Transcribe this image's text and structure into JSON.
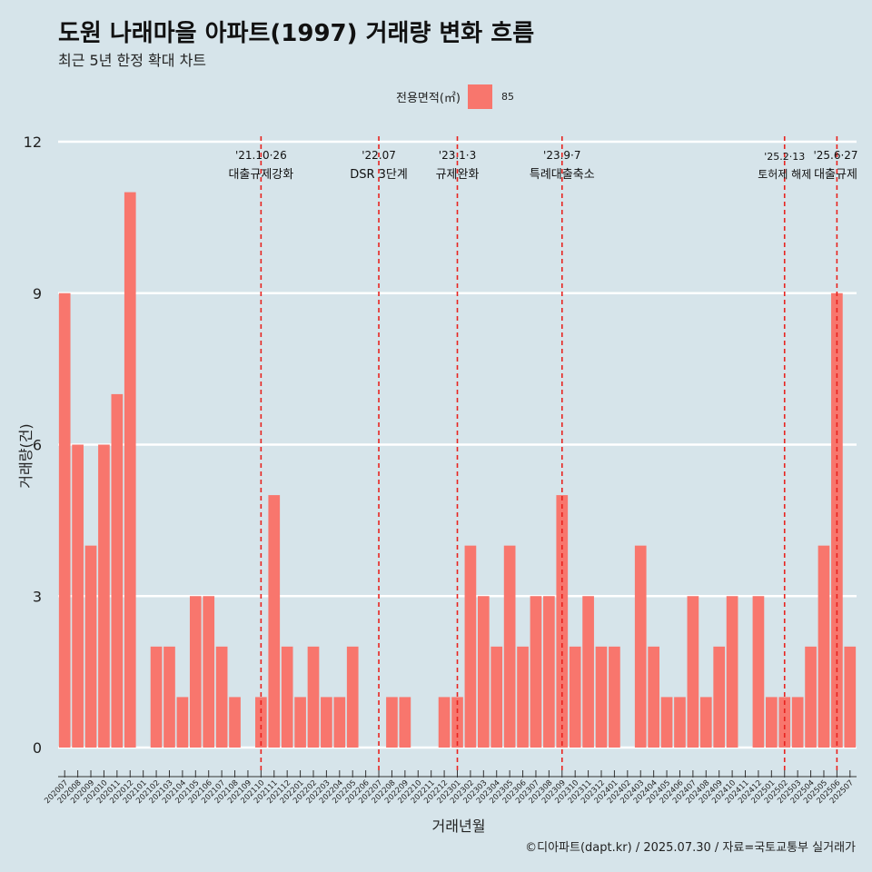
{
  "title": "도원 나래마을 아파트(1997) 거래량 변화 흐름",
  "subtitle": "최근 5년 한정 확대 차트",
  "caption": "©디아파트(dapt.kr) / 2025.07.30 / 자료=국토교통부 실거래가",
  "colors": {
    "bar": "#f8766d",
    "vline": "#e8231f",
    "background": "#d6e4ea",
    "grid": "#ffffff"
  },
  "chart_data": {
    "type": "bar",
    "xlabel": "거래년월",
    "ylabel": "거래량(건)",
    "ylim": [
      0,
      12
    ],
    "yticks": [
      0,
      3,
      6,
      9,
      12
    ],
    "grid": true,
    "legend": {
      "title": "전용면적(㎡)",
      "entries": [
        "85"
      ],
      "position": "top"
    },
    "categories": [
      "202007",
      "202008",
      "202009",
      "202010",
      "202011",
      "202012",
      "202101",
      "202102",
      "202103",
      "202104",
      "202105",
      "202106",
      "202107",
      "202108",
      "202109",
      "202110",
      "202111",
      "202112",
      "202201",
      "202202",
      "202203",
      "202204",
      "202205",
      "202206",
      "202207",
      "202208",
      "202209",
      "202210",
      "202211",
      "202212",
      "202301",
      "202302",
      "202303",
      "202304",
      "202305",
      "202306",
      "202307",
      "202308",
      "202309",
      "202310",
      "202311",
      "202312",
      "202401",
      "202402",
      "202403",
      "202404",
      "202405",
      "202406",
      "202407",
      "202408",
      "202409",
      "202410",
      "202411",
      "202412",
      "202501",
      "202502",
      "202503",
      "202504",
      "202505",
      "202506",
      "202507"
    ],
    "series": [
      {
        "name": "85",
        "values": [
          9,
          6,
          4,
          6,
          7,
          11,
          0,
          2,
          2,
          1,
          3,
          3,
          2,
          1,
          0,
          1,
          5,
          2,
          1,
          2,
          1,
          1,
          2,
          0,
          0,
          1,
          1,
          0,
          0,
          1,
          1,
          4,
          3,
          2,
          4,
          2,
          3,
          3,
          5,
          2,
          3,
          2,
          2,
          0,
          4,
          2,
          1,
          1,
          3,
          1,
          2,
          3,
          0,
          3,
          1,
          1,
          1,
          2,
          4,
          9,
          2
        ]
      }
    ],
    "annotations": [
      {
        "category": "202110",
        "date": "'21.10·26",
        "label": "대출규제강화"
      },
      {
        "category": "202207",
        "date": "'22.07",
        "label": "DSR 3단계"
      },
      {
        "category": "202301",
        "date": "'23.1·3",
        "label": "규제완화"
      },
      {
        "category": "202309",
        "date": "'23.9·7",
        "label": "특례대출축소"
      },
      {
        "category": "202502",
        "date": "'25.2·13",
        "label": "토허제 해제"
      },
      {
        "category": "202506",
        "date": "'25.6·27",
        "label": "대출규제"
      }
    ]
  }
}
